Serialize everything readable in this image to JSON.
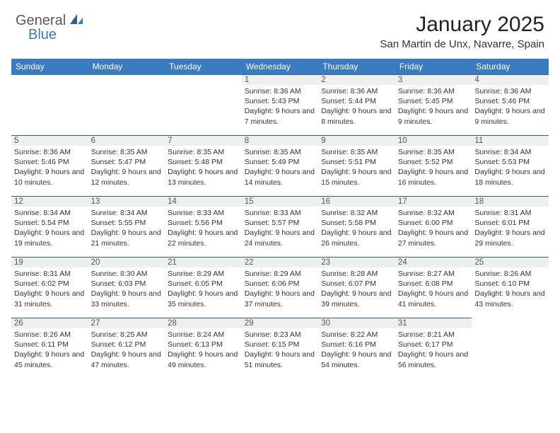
{
  "brand": {
    "part1": "General",
    "part2": "Blue"
  },
  "title": "January 2025",
  "location": "San Martin de Unx, Navarre, Spain",
  "colors": {
    "header_bg": "#3b7bbf",
    "header_text": "#ffffff",
    "row_border": "#2f5f8f",
    "daynum_bg": "#eef0f0",
    "body_text": "#333333",
    "brand_gray": "#5a5a5a",
    "brand_blue": "#3b7bbf"
  },
  "dayNames": [
    "Sunday",
    "Monday",
    "Tuesday",
    "Wednesday",
    "Thursday",
    "Friday",
    "Saturday"
  ],
  "weeks": [
    [
      {
        "n": "",
        "sunrise": "",
        "sunset": "",
        "daylight": ""
      },
      {
        "n": "",
        "sunrise": "",
        "sunset": "",
        "daylight": ""
      },
      {
        "n": "",
        "sunrise": "",
        "sunset": "",
        "daylight": ""
      },
      {
        "n": "1",
        "sunrise": "8:36 AM",
        "sunset": "5:43 PM",
        "daylight": "9 hours and 7 minutes."
      },
      {
        "n": "2",
        "sunrise": "8:36 AM",
        "sunset": "5:44 PM",
        "daylight": "9 hours and 8 minutes."
      },
      {
        "n": "3",
        "sunrise": "8:36 AM",
        "sunset": "5:45 PM",
        "daylight": "9 hours and 9 minutes."
      },
      {
        "n": "4",
        "sunrise": "8:36 AM",
        "sunset": "5:46 PM",
        "daylight": "9 hours and 9 minutes."
      }
    ],
    [
      {
        "n": "5",
        "sunrise": "8:36 AM",
        "sunset": "5:46 PM",
        "daylight": "9 hours and 10 minutes."
      },
      {
        "n": "6",
        "sunrise": "8:35 AM",
        "sunset": "5:47 PM",
        "daylight": "9 hours and 12 minutes."
      },
      {
        "n": "7",
        "sunrise": "8:35 AM",
        "sunset": "5:48 PM",
        "daylight": "9 hours and 13 minutes."
      },
      {
        "n": "8",
        "sunrise": "8:35 AM",
        "sunset": "5:49 PM",
        "daylight": "9 hours and 14 minutes."
      },
      {
        "n": "9",
        "sunrise": "8:35 AM",
        "sunset": "5:51 PM",
        "daylight": "9 hours and 15 minutes."
      },
      {
        "n": "10",
        "sunrise": "8:35 AM",
        "sunset": "5:52 PM",
        "daylight": "9 hours and 16 minutes."
      },
      {
        "n": "11",
        "sunrise": "8:34 AM",
        "sunset": "5:53 PM",
        "daylight": "9 hours and 18 minutes."
      }
    ],
    [
      {
        "n": "12",
        "sunrise": "8:34 AM",
        "sunset": "5:54 PM",
        "daylight": "9 hours and 19 minutes."
      },
      {
        "n": "13",
        "sunrise": "8:34 AM",
        "sunset": "5:55 PM",
        "daylight": "9 hours and 21 minutes."
      },
      {
        "n": "14",
        "sunrise": "8:33 AM",
        "sunset": "5:56 PM",
        "daylight": "9 hours and 22 minutes."
      },
      {
        "n": "15",
        "sunrise": "8:33 AM",
        "sunset": "5:57 PM",
        "daylight": "9 hours and 24 minutes."
      },
      {
        "n": "16",
        "sunrise": "8:32 AM",
        "sunset": "5:58 PM",
        "daylight": "9 hours and 26 minutes."
      },
      {
        "n": "17",
        "sunrise": "8:32 AM",
        "sunset": "6:00 PM",
        "daylight": "9 hours and 27 minutes."
      },
      {
        "n": "18",
        "sunrise": "8:31 AM",
        "sunset": "6:01 PM",
        "daylight": "9 hours and 29 minutes."
      }
    ],
    [
      {
        "n": "19",
        "sunrise": "8:31 AM",
        "sunset": "6:02 PM",
        "daylight": "9 hours and 31 minutes."
      },
      {
        "n": "20",
        "sunrise": "8:30 AM",
        "sunset": "6:03 PM",
        "daylight": "9 hours and 33 minutes."
      },
      {
        "n": "21",
        "sunrise": "8:29 AM",
        "sunset": "6:05 PM",
        "daylight": "9 hours and 35 minutes."
      },
      {
        "n": "22",
        "sunrise": "8:29 AM",
        "sunset": "6:06 PM",
        "daylight": "9 hours and 37 minutes."
      },
      {
        "n": "23",
        "sunrise": "8:28 AM",
        "sunset": "6:07 PM",
        "daylight": "9 hours and 39 minutes."
      },
      {
        "n": "24",
        "sunrise": "8:27 AM",
        "sunset": "6:08 PM",
        "daylight": "9 hours and 41 minutes."
      },
      {
        "n": "25",
        "sunrise": "8:26 AM",
        "sunset": "6:10 PM",
        "daylight": "9 hours and 43 minutes."
      }
    ],
    [
      {
        "n": "26",
        "sunrise": "8:26 AM",
        "sunset": "6:11 PM",
        "daylight": "9 hours and 45 minutes."
      },
      {
        "n": "27",
        "sunrise": "8:25 AM",
        "sunset": "6:12 PM",
        "daylight": "9 hours and 47 minutes."
      },
      {
        "n": "28",
        "sunrise": "8:24 AM",
        "sunset": "6:13 PM",
        "daylight": "9 hours and 49 minutes."
      },
      {
        "n": "29",
        "sunrise": "8:23 AM",
        "sunset": "6:15 PM",
        "daylight": "9 hours and 51 minutes."
      },
      {
        "n": "30",
        "sunrise": "8:22 AM",
        "sunset": "6:16 PM",
        "daylight": "9 hours and 54 minutes."
      },
      {
        "n": "31",
        "sunrise": "8:21 AM",
        "sunset": "6:17 PM",
        "daylight": "9 hours and 56 minutes."
      },
      {
        "n": "",
        "sunrise": "",
        "sunset": "",
        "daylight": ""
      }
    ]
  ],
  "labels": {
    "sunrise": "Sunrise:",
    "sunset": "Sunset:",
    "daylight": "Daylight:"
  }
}
